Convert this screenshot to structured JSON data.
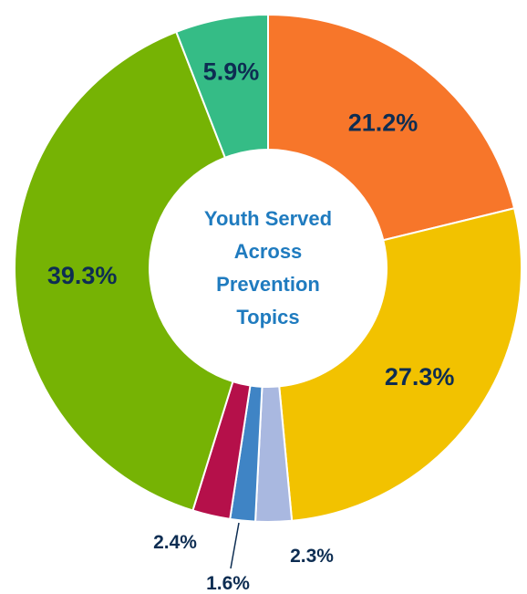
{
  "chart_data": {
    "type": "pie",
    "variant": "donut",
    "center_title_lines": [
      "Youth Served",
      "Across",
      "Prevention",
      "Topics"
    ],
    "slices": [
      {
        "label": "21.2%",
        "value": 21.2,
        "color": "#f7762a"
      },
      {
        "label": "27.3%",
        "value": 27.3,
        "color": "#f2c200"
      },
      {
        "label": "2.3%",
        "value": 2.3,
        "color": "#a9b8e0"
      },
      {
        "label": "1.6%",
        "value": 1.6,
        "color": "#3f84c5"
      },
      {
        "label": "2.4%",
        "value": 2.4,
        "color": "#b5104a"
      },
      {
        "label": "39.3%",
        "value": 39.3,
        "color": "#76b304"
      },
      {
        "label": "5.9%",
        "value": 5.9,
        "color": "#35bc86"
      }
    ],
    "legend": "none"
  }
}
